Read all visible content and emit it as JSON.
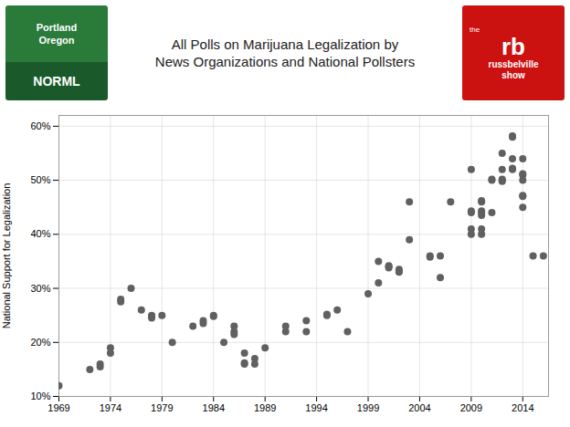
{
  "chart_data": {
    "type": "scatter",
    "title": "All Polls on Marijuana Legalization by\nNews Organizations and National Pollsters",
    "ylabel": "National Support for Legalization",
    "annotations": [
      [
        "Portland",
        "Oregon",
        "NORML"
      ],
      [
        "the",
        "rb",
        "russbelville",
        "show"
      ]
    ],
    "x": [
      1969,
      1972,
      1973,
      1973,
      1974,
      1974,
      1975,
      1975,
      1976,
      1977,
      1978,
      1978,
      1978,
      1979,
      1980,
      1982,
      1983,
      1983,
      1984,
      1984,
      1985,
      1986,
      1986,
      1986,
      1987,
      1987,
      1987,
      1988,
      1988,
      1989,
      1991,
      1991,
      1993,
      1993,
      1995,
      1995,
      1996,
      1997,
      1999,
      2000,
      2000,
      2001,
      2001,
      2001,
      2002,
      2002,
      2002,
      2003,
      2003,
      2005,
      2005,
      2006,
      2006,
      2007,
      2009,
      2009,
      2009,
      2009,
      2009,
      2010,
      2010,
      2010,
      2010,
      2010,
      2010,
      2010,
      2011,
      2011,
      2011,
      2012,
      2012,
      2012,
      2012,
      2012,
      2013,
      2013,
      2013,
      2013,
      2013,
      2014,
      2014,
      2014,
      2014,
      2014,
      2014,
      2014,
      2015,
      2016
    ],
    "values": [
      0.12,
      0.15,
      0.16,
      0.155,
      0.18,
      0.19,
      0.28,
      0.275,
      0.3,
      0.26,
      0.25,
      0.248,
      0.245,
      0.25,
      0.2,
      0.23,
      0.235,
      0.24,
      0.25,
      0.248,
      0.2,
      0.23,
      0.22,
      0.215,
      0.18,
      0.16,
      0.162,
      0.17,
      0.16,
      0.19,
      0.22,
      0.23,
      0.22,
      0.24,
      0.25,
      0.252,
      0.26,
      0.22,
      0.29,
      0.31,
      0.35,
      0.34,
      0.342,
      0.338,
      0.33,
      0.335,
      0.332,
      0.46,
      0.39,
      0.36,
      0.358,
      0.36,
      0.32,
      0.46,
      0.41,
      0.44,
      0.4,
      0.443,
      0.52,
      0.44,
      0.46,
      0.443,
      0.435,
      0.462,
      0.41,
      0.4,
      0.5,
      0.502,
      0.44,
      0.5,
      0.502,
      0.498,
      0.52,
      0.55,
      0.54,
      0.52,
      0.58,
      0.582,
      0.522,
      0.54,
      0.51,
      0.5,
      0.47,
      0.472,
      0.45,
      0.512,
      0.36,
      0.36
    ],
    "color": "#606060",
    "xlim": [
      1969,
      2016.5
    ],
    "ylim": [
      0.1,
      0.62
    ],
    "xticks": [
      1969,
      1974,
      1979,
      1984,
      1989,
      1994,
      1999,
      2004,
      2009,
      2014
    ],
    "yticks": [
      {
        "value": 0.1,
        "label": "10%"
      },
      {
        "value": 0.2,
        "label": "20%"
      },
      {
        "value": 0.3,
        "label": "30%"
      },
      {
        "value": 0.4,
        "label": "40%"
      },
      {
        "value": 0.5,
        "label": "50%"
      },
      {
        "value": 0.6,
        "label": "60%"
      }
    ],
    "grid": true
  }
}
